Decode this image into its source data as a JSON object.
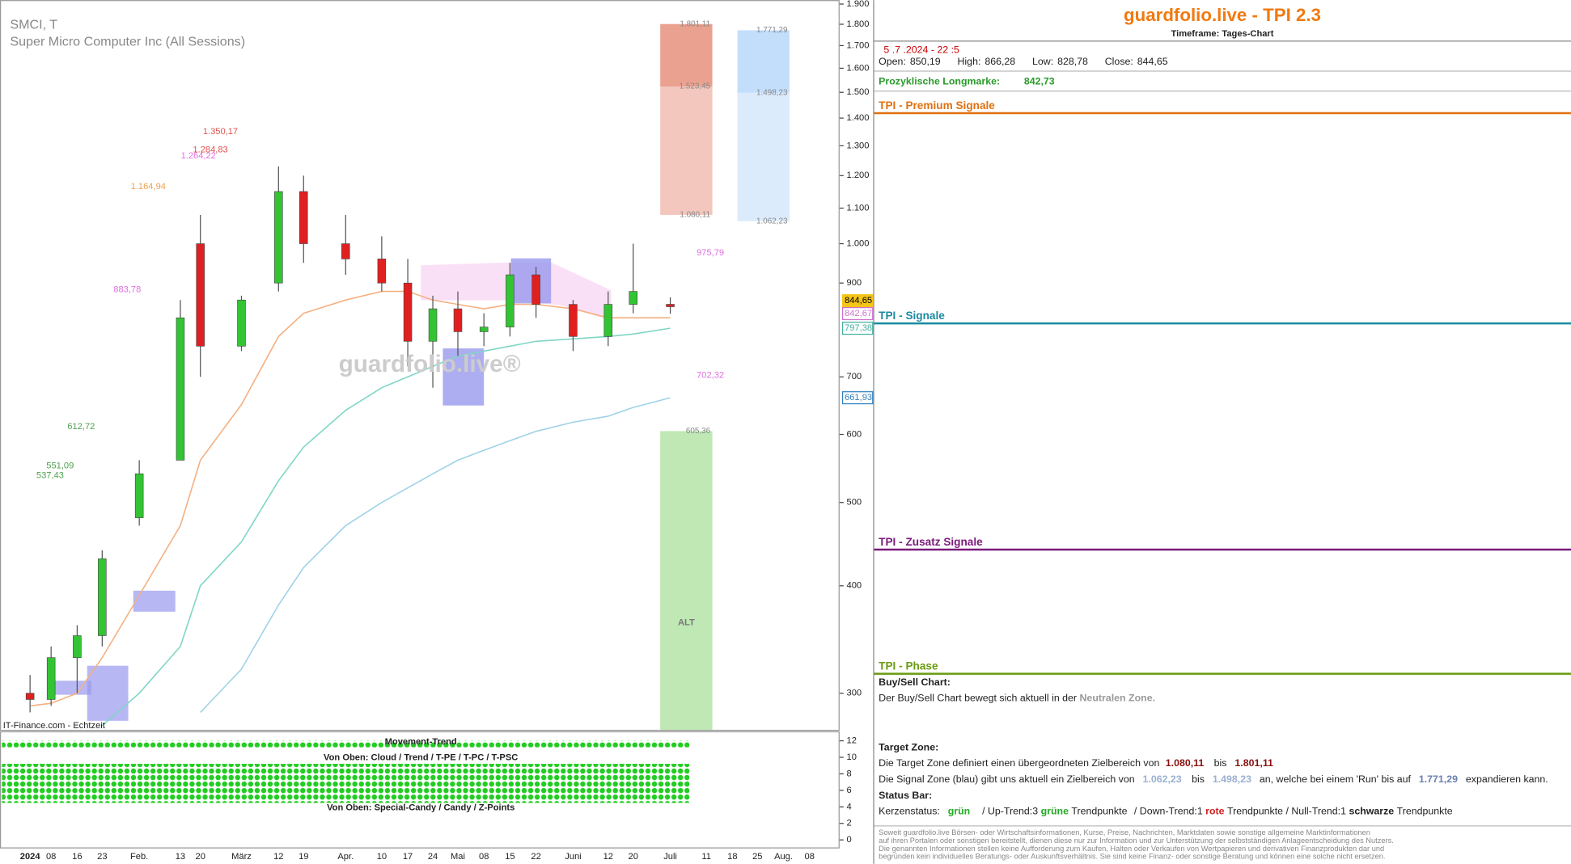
{
  "chart_data": {
    "type": "candlestick",
    "title": "SMCI, T",
    "subtitle": "Super Micro Computer Inc (All Sessions)",
    "source": "IT-Finance.com - Echtzeit",
    "watermark": "guardfolio.live®",
    "log_scale": true,
    "up_color": "#33c433",
    "down_color": "#e02020",
    "categories": [
      "2024",
      "08",
      "16",
      "23",
      "Feb.",
      "13",
      "20",
      "März",
      "12",
      "19",
      "Apr.",
      "10",
      "17",
      "24",
      "Mai",
      "08",
      "15",
      "22",
      "Juni",
      "12",
      "20",
      "Juli",
      "11",
      "18",
      "25",
      "Aug.",
      "08"
    ],
    "open": [
      300,
      295,
      330,
      350,
      480,
      560,
      1000,
      760,
      900,
      1150,
      1000,
      960,
      900,
      770,
      840,
      790,
      800,
      920,
      850,
      780,
      850,
      850.19,
      null,
      null,
      null,
      null,
      null
    ],
    "high": [
      315,
      340,
      360,
      440,
      560,
      860,
      1080,
      870,
      1230,
      1200,
      1080,
      1020,
      960,
      870,
      880,
      830,
      950,
      940,
      860,
      880,
      1000,
      866.28,
      null,
      null,
      null,
      null,
      null
    ],
    "low": [
      285,
      290,
      300,
      340,
      470,
      560,
      700,
      750,
      880,
      950,
      920,
      880,
      720,
      680,
      740,
      760,
      780,
      820,
      750,
      760,
      830,
      828.78,
      null,
      null,
      null,
      null,
      null
    ],
    "close": [
      295,
      330,
      350,
      430,
      540,
      820,
      760,
      860,
      1150,
      1000,
      960,
      900,
      770,
      840,
      790,
      800,
      920,
      850,
      780,
      850,
      880,
      844.65,
      null,
      null,
      null,
      null,
      null
    ],
    "series": [
      {
        "color": "#f4b183",
        "values": [
          290,
          292,
          300,
          330,
          390,
          470,
          560,
          650,
          780,
          830,
          860,
          880,
          880,
          860,
          850,
          840,
          850,
          850,
          840,
          820,
          820,
          820,
          null,
          null,
          null,
          null,
          null
        ]
      },
      {
        "color": "#7fd6c6",
        "values": [
          null,
          null,
          null,
          275,
          300,
          340,
          400,
          450,
          530,
          580,
          640,
          680,
          700,
          720,
          740,
          750,
          760,
          770,
          775,
          780,
          785,
          797.38,
          null,
          null,
          null,
          null,
          null
        ]
      },
      {
        "color": "#9fd3e8",
        "values": [
          null,
          null,
          null,
          null,
          null,
          null,
          285,
          320,
          380,
          420,
          470,
          500,
          520,
          540,
          560,
          575,
          590,
          605,
          620,
          630,
          645,
          661.93,
          null,
          null,
          null,
          null,
          null
        ]
      }
    ],
    "ylim": [
      272,
      1900
    ],
    "yticks": [
      300,
      400,
      500,
      600,
      700,
      900,
      {
        "value": 1000,
        "label": "1.000"
      },
      {
        "value": 1100,
        "label": "1.100"
      },
      {
        "value": 1200,
        "label": "1.200"
      },
      {
        "value": 1300,
        "label": "1.300"
      },
      {
        "value": 1400,
        "label": "1.400"
      },
      {
        "value": 1500,
        "label": "1.500"
      },
      {
        "value": 1600,
        "label": "1.600"
      },
      {
        "value": 1700,
        "label": "1.700"
      },
      {
        "value": 1800,
        "label": "1.800"
      },
      {
        "value": 1900,
        "label": "1.900"
      }
    ],
    "annotations": [
      {
        "value": 1350.17,
        "label": "1.350,17",
        "color": "#e05050"
      },
      {
        "value": 1284.83,
        "label": "1.284,83",
        "color": "#e05050"
      },
      {
        "value": 1264.22,
        "label": "1.264,22",
        "color": "#e070e0"
      },
      {
        "value": 1164.94,
        "label": "1.164,94",
        "color": "#f0a050"
      },
      {
        "value": 883.78,
        "label": "883,78",
        "color": "#e070e0"
      },
      {
        "value": 612.72,
        "label": "612,72",
        "color": "#50a050"
      },
      {
        "value": 551.09,
        "label": "551,09",
        "color": "#50a050"
      },
      {
        "value": 537.43,
        "label": "537,43",
        "color": "#50a050"
      },
      {
        "value": 975.79,
        "label": "975,79",
        "color": "#e070e0"
      },
      {
        "value": 702.32,
        "label": "702,32",
        "color": "#e070e0"
      }
    ],
    "target_zone": {
      "color": "#e8907c",
      "low": 1080.11,
      "mid": 1523.45,
      "high": 1801.11,
      "low_label": "1.080,11",
      "mid_label": "1.523,45",
      "high_label": "1.801,11"
    },
    "signal_zone": {
      "color": "#b8d8fa",
      "low": 1062.23,
      "mid": 1498.23,
      "high": 1771.29,
      "low_label": "1.062,23",
      "mid_label": "1.498,23",
      "high_label": "1.771,29"
    },
    "alt_zone": {
      "color": "#bfe8b4",
      "label": "ALT",
      "top": 605.36,
      "top_label": "605,36"
    },
    "price_flags": [
      {
        "value": 844.65,
        "label": "844,65",
        "color": "#f5c518"
      },
      {
        "value": 842.67,
        "label": "842,67",
        "color": "#d070d0"
      },
      {
        "value": 797.38,
        "label": "797,38",
        "color": "#40b0a0"
      },
      {
        "value": 661.93,
        "label": "661,93",
        "color": "#3080c0"
      }
    ],
    "indicator": {
      "title": "Movement-Trend",
      "label_1": "Von Oben: Cloud / Trend / T-PE / T-PC / T-PSC",
      "label_2": "Von Oben: Special-Candy / Candy / Z-Points",
      "ylim": [
        0,
        12
      ],
      "yticks": [
        0,
        2,
        4,
        6,
        8,
        10,
        12
      ]
    }
  },
  "panel": {
    "title": "guardfolio.live - TPI 2.3",
    "timeframe": "Timeframe: Tages-Chart",
    "datetime": "5 .7 .2024  - 22 :5",
    "ohlc": [
      [
        "Open:",
        "850,19"
      ],
      [
        "High:",
        "866,28"
      ],
      [
        "Low:",
        "828,78"
      ],
      [
        "Close:",
        "844,65"
      ]
    ],
    "longmarke": [
      "Prozyklische Longmarke:",
      "842,73"
    ],
    "sections": [
      "TPI - Premium Signale",
      "TPI - Signale",
      "TPI - Zusatz Signale",
      "TPI - Phase"
    ],
    "buysell": [
      "Buy/Sell Chart:",
      "Der Buy/Sell Chart bewegt sich aktuell in der",
      "Neutralen Zone."
    ],
    "target": [
      "Target Zone:",
      "Die Target Zone definiert einen übergeordneten Zielbereich von",
      "1.080,11",
      "bis",
      "1.801,11"
    ],
    "signal": [
      "Die Signal Zone (blau) gibt uns aktuell ein Zielbereich von",
      "1.062,23",
      "bis",
      "1.498,23",
      "an, welche bei einem 'Run' bis auf",
      "1.771,29",
      "expandieren kann."
    ],
    "status": [
      "Status Bar:",
      "Kerzenstatus:",
      "grün",
      "/ Up-Trend:3",
      "grüne",
      "Trendpunkte",
      "/ Down-Trend:1",
      "rote",
      "Trendpunkte",
      "/ Null-Trend:1",
      "schwarze",
      "Trendpunkte"
    ],
    "disclaimer": [
      "Soweit guardfolio.live Börsen- oder Wirtschaftsinformationen, Kurse, Preise, Nachrichten, Marktdaten sowie sonstige allgemeine Marktinformationen",
      "auf ihren Portalen oder sonstigen bereitstellt, dienen diese nur zur Information und zur Unterstützung der selbstständigen Anlageentscheidung des Nutzers.",
      "Die genannten Informationen stellen keine Aufforderung zum Kaufen, Halten oder Verkaufen von Wertpapieren und derivativen Finanzprodukten dar und",
      "begründen kein individuelles Beratungs- oder Auskunftsverhältnis. Sie sind keine Finanz- oder sonstige Beratung und können eine solche nicht ersetzen."
    ]
  }
}
